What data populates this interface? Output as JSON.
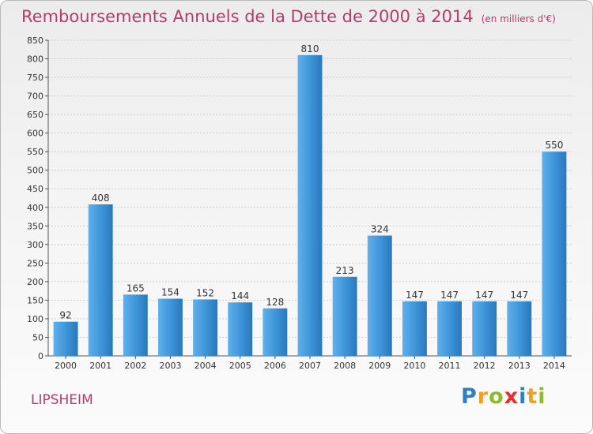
{
  "chart_data": {
    "type": "bar",
    "title": "Remboursements Annuels de la Dette de 2000 à 2014",
    "unit_note": "(en milliers d'€)",
    "categories": [
      "2000",
      "2001",
      "2002",
      "2003",
      "2004",
      "2005",
      "2006",
      "2007",
      "2008",
      "2009",
      "2010",
      "2011",
      "2012",
      "2013",
      "2014"
    ],
    "values": [
      92,
      408,
      165,
      154,
      152,
      144,
      128,
      810,
      213,
      324,
      147,
      147,
      147,
      147,
      550
    ],
    "ylim": [
      0,
      850
    ],
    "yticks": [
      0,
      50,
      100,
      150,
      200,
      250,
      300,
      350,
      400,
      450,
      500,
      550,
      600,
      650,
      700,
      750,
      800,
      850
    ],
    "grid": true,
    "legend": "none",
    "bar_color": "#3a8fd4"
  },
  "footer": {
    "city": "LIPSHEIM",
    "logo": {
      "p": "P",
      "r": "r",
      "o": "o",
      "x": "x",
      "i1": "i",
      "t": "t",
      "i2": "i"
    }
  }
}
